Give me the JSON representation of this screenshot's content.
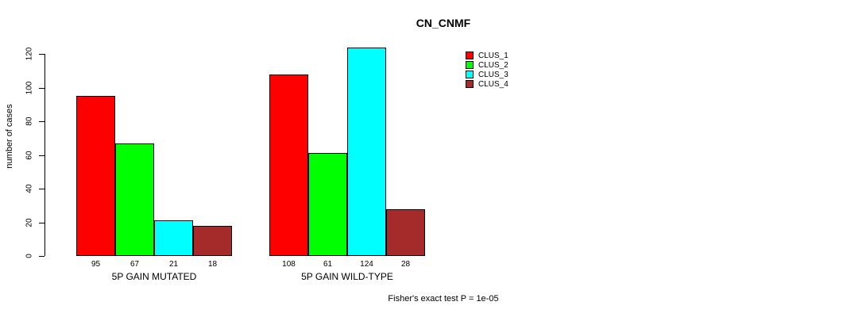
{
  "title": "CN_CNMF",
  "footer": "Fisher's exact test P = 1e-05",
  "legend": {
    "items": [
      {
        "label": "CLUS_1",
        "color": "#FF0000"
      },
      {
        "label": "CLUS_2",
        "color": "#00FF00"
      },
      {
        "label": "CLUS_3",
        "color": "#00FFFF"
      },
      {
        "label": "CLUS_4",
        "color": "#A52A2A"
      }
    ]
  },
  "chart_data": {
    "type": "bar",
    "title": "CN_CNMF",
    "xlabel": "",
    "ylabel": "number of cases",
    "ylim": [
      0,
      120
    ],
    "yticks": [
      0,
      20,
      40,
      60,
      80,
      100,
      120
    ],
    "grid": false,
    "legend_position": "top-right",
    "bar_border_color": "#000000",
    "categories": [
      "5P GAIN MUTATED",
      "5P GAIN WILD-TYPE"
    ],
    "series": [
      {
        "name": "CLUS_1",
        "color": "#FF0000",
        "values": [
          95,
          108
        ]
      },
      {
        "name": "CLUS_2",
        "color": "#00FF00",
        "values": [
          67,
          61
        ]
      },
      {
        "name": "CLUS_3",
        "color": "#00FFFF",
        "values": [
          21,
          124
        ]
      },
      {
        "name": "CLUS_4",
        "color": "#A52A2A",
        "values": [
          18,
          28
        ]
      }
    ],
    "value_labels": {
      "5P GAIN MUTATED": [
        95,
        67,
        21,
        18
      ],
      "5P GAIN WILD-TYPE": [
        108,
        61,
        124,
        28
      ]
    },
    "annotation": "Fisher's exact test P = 1e-05"
  }
}
